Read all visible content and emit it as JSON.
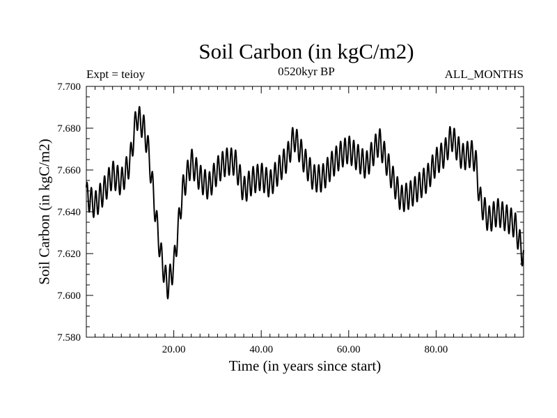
{
  "header": {
    "title": "Soil Carbon (in kgC/m2)",
    "experiment": "Expt = teioy",
    "period": "0520kyr BP",
    "months": "ALL_MONTHS"
  },
  "chart_data": {
    "type": "line",
    "title": "Soil Carbon (in kgC/m2)",
    "xlabel": "Time (in years since start)",
    "ylabel": "Soil Carbon (in kgC/m2)",
    "xlim": [
      0,
      100
    ],
    "ylim": [
      7.58,
      7.7
    ],
    "xticks": [
      20,
      40,
      60,
      80
    ],
    "xtick_labels": [
      "20.00",
      "40.00",
      "60.00",
      "80.00"
    ],
    "yticks": [
      7.58,
      7.6,
      7.62,
      7.64,
      7.66,
      7.68,
      7.7
    ],
    "ytick_labels": [
      "7.580",
      "7.600",
      "7.620",
      "7.640",
      "7.660",
      "7.680",
      "7.700"
    ],
    "seasonal_amplitude": 0.0065,
    "series": [
      {
        "name": "Soil Carbon",
        "color": "#000000",
        "x": [
          0,
          2,
          4,
          6,
          8,
          10,
          11.5,
          13,
          14,
          15,
          16,
          17,
          18.5,
          20,
          21,
          22,
          24,
          26,
          28,
          30,
          32,
          34,
          36,
          38,
          40,
          42,
          44,
          46,
          47.5,
          50,
          52,
          54,
          56,
          58,
          60,
          62,
          64,
          66,
          67,
          70,
          72,
          74,
          76,
          78,
          80,
          82,
          83.5,
          86,
          88,
          89,
          90,
          92,
          94,
          96,
          98,
          100
        ],
        "y": [
          7.648,
          7.643,
          7.65,
          7.658,
          7.654,
          7.664,
          7.686,
          7.681,
          7.672,
          7.655,
          7.636,
          7.62,
          7.604,
          7.614,
          7.632,
          7.65,
          7.664,
          7.656,
          7.652,
          7.66,
          7.664,
          7.664,
          7.65,
          7.655,
          7.657,
          7.653,
          7.66,
          7.666,
          7.676,
          7.664,
          7.656,
          7.656,
          7.662,
          7.667,
          7.67,
          7.666,
          7.662,
          7.67,
          7.674,
          7.656,
          7.646,
          7.648,
          7.652,
          7.656,
          7.664,
          7.668,
          7.676,
          7.666,
          7.668,
          7.665,
          7.646,
          7.636,
          7.64,
          7.637,
          7.634,
          7.618
        ]
      }
    ]
  }
}
